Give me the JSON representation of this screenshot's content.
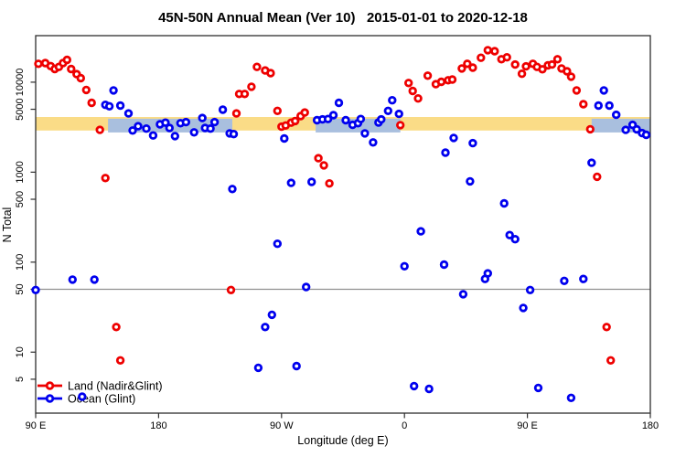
{
  "chart_data": {
    "type": "scatter",
    "title": "45N-50N Annual Mean (Ver 10)   2015-01-01 to 2020-12-18",
    "xlabel": "Longitude (deg E)",
    "ylabel": "N Total",
    "x_axis": {
      "min": 90,
      "max": 540,
      "ticks": [
        {
          "value": 90,
          "label": "90 E"
        },
        {
          "value": 180,
          "label": "180"
        },
        {
          "value": 270,
          "label": "90 W"
        },
        {
          "value": 360,
          "label": "0"
        },
        {
          "value": 450,
          "label": "90 E"
        },
        {
          "value": 540,
          "label": "180"
        }
      ]
    },
    "y_axis": {
      "scale": "log10",
      "min": 2.1,
      "max": 32900,
      "ticks": [
        10000,
        5000,
        1000,
        500,
        100,
        50,
        10,
        5
      ]
    },
    "grid": "off",
    "reference_line": {
      "value": 50,
      "color": "#909090"
    },
    "bands": [
      {
        "name": "land-target-band",
        "color": "#FADC87",
        "lon_range": [
          90,
          540
        ],
        "value_range": [
          2900,
          4100
        ]
      },
      {
        "name": "ocean-target-band",
        "color": "#A9BFDE",
        "segments": [
          [
            143,
            234
          ],
          [
            295,
            357
          ],
          [
            497,
            540
          ]
        ],
        "value_range": [
          2770,
          3930
        ]
      }
    ],
    "legend_position": "bottom-left",
    "series": [
      {
        "name": "Land (Nadir&Glint)",
        "color": "#EE0000",
        "points": [
          [
            92,
            16000
          ],
          [
            97,
            16300
          ],
          [
            101,
            15100
          ],
          [
            104,
            14000
          ],
          [
            107,
            14800
          ],
          [
            110,
            16300
          ],
          [
            113,
            17700
          ],
          [
            116,
            14000
          ],
          [
            120,
            12300
          ],
          [
            123,
            11100
          ],
          [
            127,
            8200
          ],
          [
            131,
            5900
          ],
          [
            137,
            2950
          ],
          [
            141,
            860
          ],
          [
            149,
            19
          ],
          [
            152,
            8.1
          ],
          [
            233,
            49
          ],
          [
            237,
            4500
          ],
          [
            239,
            7400
          ],
          [
            243,
            7400
          ],
          [
            248,
            8900
          ],
          [
            252,
            14800
          ],
          [
            258,
            13500
          ],
          [
            262,
            12600
          ],
          [
            267,
            4800
          ],
          [
            270,
            3200
          ],
          [
            273,
            3300
          ],
          [
            277,
            3550
          ],
          [
            280,
            3700
          ],
          [
            284,
            4200
          ],
          [
            287,
            4600
          ],
          [
            297,
            1430
          ],
          [
            301,
            1190
          ],
          [
            305,
            750
          ],
          [
            357,
            3330
          ],
          [
            363,
            9800
          ],
          [
            366,
            8000
          ],
          [
            370,
            6600
          ],
          [
            377,
            11800
          ],
          [
            383,
            9500
          ],
          [
            387,
            10100
          ],
          [
            392,
            10500
          ],
          [
            395,
            10700
          ],
          [
            402,
            14200
          ],
          [
            406,
            16000
          ],
          [
            410,
            14500
          ],
          [
            416,
            18700
          ],
          [
            421,
            22700
          ],
          [
            426,
            22100
          ],
          [
            431,
            18000
          ],
          [
            435,
            18900
          ],
          [
            441,
            15700
          ],
          [
            446,
            12400
          ],
          [
            449,
            15000
          ],
          [
            454,
            16000
          ],
          [
            457,
            14800
          ],
          [
            461,
            13900
          ],
          [
            465,
            15400
          ],
          [
            468,
            15700
          ],
          [
            472,
            18000
          ],
          [
            475,
            14200
          ],
          [
            479,
            13200
          ],
          [
            482,
            11500
          ],
          [
            486,
            8100
          ],
          [
            491,
            5700
          ],
          [
            496,
            3000
          ],
          [
            501,
            890
          ],
          [
            508,
            19
          ],
          [
            511,
            8.1
          ]
        ]
      },
      {
        "name": "Ocean (Glint)",
        "color": "#0000EE",
        "points": [
          [
            90,
            49
          ],
          [
            117,
            64
          ],
          [
            124,
            3.2
          ],
          [
            133,
            64
          ],
          [
            141,
            5600
          ],
          [
            144,
            5400
          ],
          [
            147,
            8100
          ],
          [
            152,
            5500
          ],
          [
            158,
            4500
          ],
          [
            161,
            2900
          ],
          [
            165,
            3240
          ],
          [
            171,
            3050
          ],
          [
            176,
            2560
          ],
          [
            181,
            3400
          ],
          [
            185,
            3550
          ],
          [
            188,
            3100
          ],
          [
            192,
            2520
          ],
          [
            196,
            3500
          ],
          [
            200,
            3600
          ],
          [
            206,
            2770
          ],
          [
            212,
            4000
          ],
          [
            214,
            3100
          ],
          [
            218,
            3050
          ],
          [
            221,
            3600
          ],
          [
            227,
            4950
          ],
          [
            232,
            2700
          ],
          [
            234,
            650
          ],
          [
            235,
            2650
          ],
          [
            253,
            6.7
          ],
          [
            258,
            19
          ],
          [
            263,
            26
          ],
          [
            267,
            160
          ],
          [
            272,
            2370
          ],
          [
            277,
            760
          ],
          [
            281,
            7
          ],
          [
            288,
            53
          ],
          [
            292,
            780
          ],
          [
            296,
            3780
          ],
          [
            300,
            3860
          ],
          [
            304,
            3900
          ],
          [
            308,
            4300
          ],
          [
            312,
            5900
          ],
          [
            317,
            3780
          ],
          [
            322,
            3360
          ],
          [
            326,
            3500
          ],
          [
            328,
            3900
          ],
          [
            331,
            2700
          ],
          [
            337,
            2140
          ],
          [
            341,
            3570
          ],
          [
            343,
            3860
          ],
          [
            348,
            4800
          ],
          [
            351,
            6300
          ],
          [
            356,
            4440
          ],
          [
            360,
            90
          ],
          [
            367,
            4.2
          ],
          [
            372,
            220
          ],
          [
            378,
            3.9
          ],
          [
            389,
            94
          ],
          [
            390,
            1650
          ],
          [
            396,
            2400
          ],
          [
            403,
            44
          ],
          [
            408,
            790
          ],
          [
            410,
            2100
          ],
          [
            419,
            65
          ],
          [
            421,
            75
          ],
          [
            433,
            450
          ],
          [
            437,
            200
          ],
          [
            441,
            180
          ],
          [
            447,
            31
          ],
          [
            452,
            49
          ],
          [
            458,
            4
          ],
          [
            477,
            62
          ],
          [
            482,
            3.1
          ],
          [
            491,
            65
          ],
          [
            497,
            1270
          ],
          [
            502,
            5500
          ],
          [
            506,
            8100
          ],
          [
            510,
            5500
          ],
          [
            515,
            4340
          ],
          [
            522,
            2950
          ],
          [
            527,
            3360
          ],
          [
            530,
            2990
          ],
          [
            534,
            2720
          ],
          [
            537,
            2600
          ]
        ]
      }
    ]
  }
}
